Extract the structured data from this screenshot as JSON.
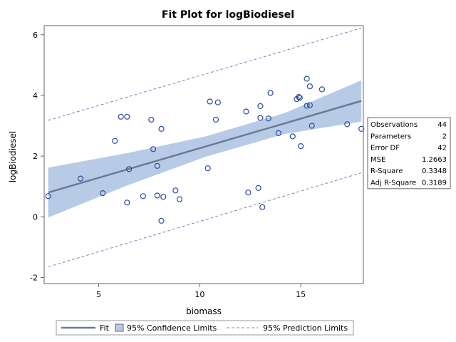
{
  "chart_data": {
    "type": "scatter",
    "title": "Fit Plot for logBiodiesel",
    "xlabel": "biomass",
    "ylabel": "logBiodiesel",
    "xlim": [
      2.3,
      18.1
    ],
    "ylim": [
      -2.2,
      6.3
    ],
    "x_ticks": [
      5,
      10,
      15
    ],
    "y_ticks": [
      -2,
      0,
      2,
      4,
      6
    ],
    "grid": false,
    "colors": {
      "frame": "#666666",
      "marker": "#2a4d9c",
      "fit": "#6b7b95",
      "confidence_band": "#b8cbe6",
      "prediction": "#7a85c0",
      "text": "#000000"
    },
    "points": [
      {
        "x": 2.5,
        "y": 0.68
      },
      {
        "x": 4.1,
        "y": 1.26
      },
      {
        "x": 5.2,
        "y": 0.78
      },
      {
        "x": 5.8,
        "y": 2.5
      },
      {
        "x": 6.1,
        "y": 3.3
      },
      {
        "x": 6.4,
        "y": 3.3
      },
      {
        "x": 6.4,
        "y": 0.47
      },
      {
        "x": 6.5,
        "y": 1.57
      },
      {
        "x": 7.2,
        "y": 0.68
      },
      {
        "x": 7.6,
        "y": 3.2
      },
      {
        "x": 7.7,
        "y": 2.23
      },
      {
        "x": 7.9,
        "y": 0.7
      },
      {
        "x": 7.9,
        "y": 1.68
      },
      {
        "x": 8.1,
        "y": 2.9
      },
      {
        "x": 8.1,
        "y": -0.13
      },
      {
        "x": 8.2,
        "y": 0.66
      },
      {
        "x": 8.8,
        "y": 0.87
      },
      {
        "x": 9.0,
        "y": 0.58
      },
      {
        "x": 10.4,
        "y": 1.6
      },
      {
        "x": 10.5,
        "y": 3.8
      },
      {
        "x": 10.8,
        "y": 3.2
      },
      {
        "x": 10.9,
        "y": 3.77
      },
      {
        "x": 12.3,
        "y": 3.47
      },
      {
        "x": 12.4,
        "y": 0.8
      },
      {
        "x": 12.9,
        "y": 0.95
      },
      {
        "x": 13.0,
        "y": 3.65
      },
      {
        "x": 13.0,
        "y": 3.26
      },
      {
        "x": 13.1,
        "y": 0.32
      },
      {
        "x": 13.4,
        "y": 3.24
      },
      {
        "x": 13.5,
        "y": 4.08
      },
      {
        "x": 13.9,
        "y": 2.76
      },
      {
        "x": 14.6,
        "y": 2.65
      },
      {
        "x": 14.8,
        "y": 3.88
      },
      {
        "x": 14.9,
        "y": 3.95
      },
      {
        "x": 14.95,
        "y": 3.92
      },
      {
        "x": 15.0,
        "y": 2.33
      },
      {
        "x": 15.3,
        "y": 4.55
      },
      {
        "x": 15.3,
        "y": 3.66
      },
      {
        "x": 15.45,
        "y": 4.3
      },
      {
        "x": 15.45,
        "y": 3.68
      },
      {
        "x": 15.55,
        "y": 3.0
      },
      {
        "x": 16.05,
        "y": 4.2
      },
      {
        "x": 17.3,
        "y": 3.05
      },
      {
        "x": 18.0,
        "y": 2.9
      }
    ],
    "fit": {
      "x": [
        2.5,
        18.0
      ],
      "y": [
        0.8,
        3.82
      ]
    },
    "confidence_limits": {
      "x": [
        2.5,
        6.4,
        10.3,
        14.2,
        18.0
      ],
      "lower": [
        -0.02,
        1.03,
        1.98,
        2.73,
        3.14
      ],
      "upper": [
        1.62,
        2.1,
        2.65,
        3.42,
        4.5
      ]
    },
    "prediction_limits": {
      "x": [
        2.5,
        18.0
      ],
      "lower": [
        -1.65,
        1.45
      ],
      "upper": [
        3.18,
        6.22
      ]
    },
    "fit_statistics": [
      {
        "label": "Observations",
        "value": "44"
      },
      {
        "label": "Parameters",
        "value": "2"
      },
      {
        "label": "Error DF",
        "value": "42"
      },
      {
        "label": "MSE",
        "value": "1.2663"
      },
      {
        "label": "R-Square",
        "value": "0.3348"
      },
      {
        "label": "Adj R-Square",
        "value": "0.3189"
      }
    ],
    "legend": {
      "placement": "bottom",
      "entries": [
        {
          "type": "line",
          "label": "Fit"
        },
        {
          "type": "band",
          "label": "95% Confidence Limits"
        },
        {
          "type": "dashed",
          "label": "95% Prediction Limits"
        }
      ]
    }
  }
}
